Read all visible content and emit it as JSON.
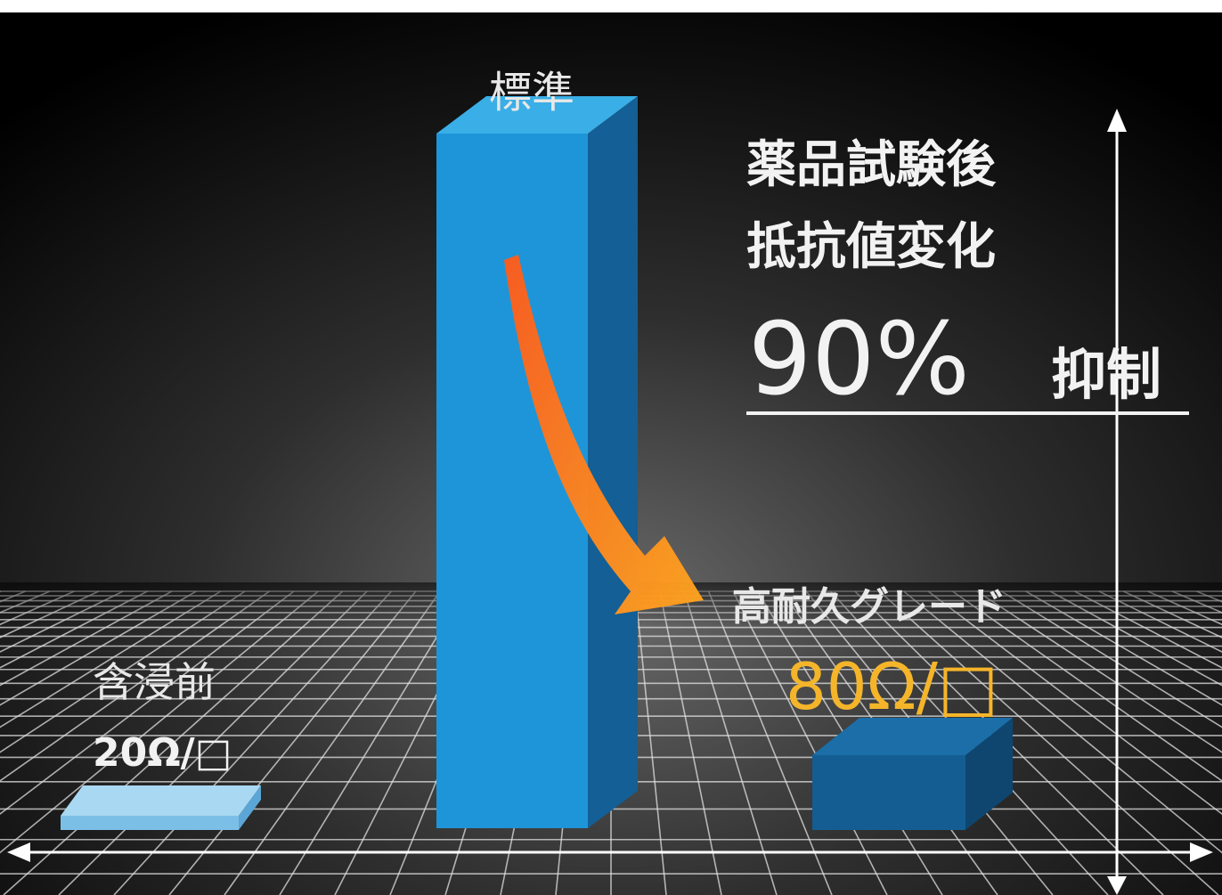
{
  "chart_data": {
    "type": "bar",
    "categories": [
      "含浸前",
      "標準",
      "高耐久グレード"
    ],
    "value_labels": [
      "20Ω/□",
      "",
      "80Ω/□"
    ],
    "headline": {
      "line1": "薬品試験後",
      "line2": "抵抗値変化",
      "percent": "90%",
      "suffix": "抑制"
    },
    "relative_heights": [
      0.03,
      1.0,
      0.14
    ]
  },
  "colors": {
    "background_top": "#000000",
    "background_mid": "#5a5a5a",
    "bar_light": "#8cc8ea",
    "bar_standard": "#1e95d8",
    "bar_dark": "#125a90",
    "arrow_start": "#ff5a1a",
    "arrow_end": "#ffa520",
    "value_highlight": "#f5b52a",
    "text": "#f2f2f2",
    "grid": "#e0e0e0"
  }
}
